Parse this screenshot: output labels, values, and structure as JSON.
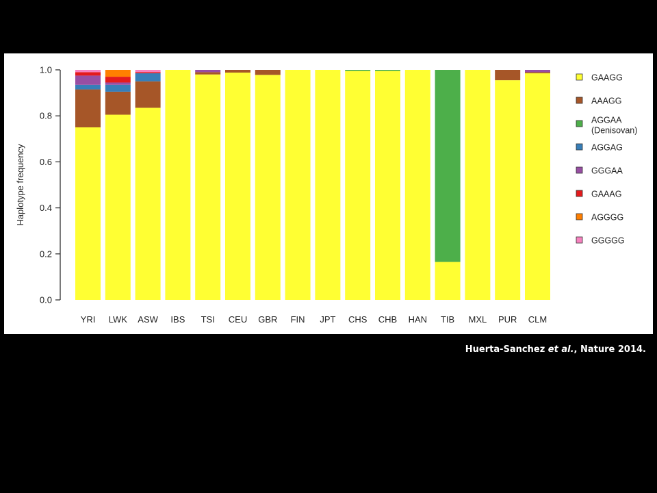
{
  "chart_data": {
    "type": "bar",
    "stacked": true,
    "ylabel": "Haplotype frequency",
    "xlabel": "",
    "ylim": [
      0,
      1
    ],
    "yticks": [
      "0.0",
      "0.2",
      "0.4",
      "0.6",
      "0.8",
      "1.0"
    ],
    "categories": [
      "YRI",
      "LWK",
      "ASW",
      "IBS",
      "TSI",
      "CEU",
      "GBR",
      "FIN",
      "JPT",
      "CHS",
      "CHB",
      "HAN",
      "TIB",
      "MXL",
      "PUR",
      "CLM"
    ],
    "legend_position": "right",
    "series": [
      {
        "name": "GAAGG",
        "color": "#ffff33",
        "values": [
          0.75,
          0.805,
          0.835,
          1.0,
          0.98,
          0.988,
          0.978,
          1.0,
          1.0,
          0.995,
          0.995,
          1.0,
          0.165,
          1.0,
          0.955,
          0.985
        ]
      },
      {
        "name": "AAAGG",
        "color": "#a65628",
        "values": [
          0.165,
          0.1,
          0.115,
          0.0,
          0.01,
          0.012,
          0.022,
          0.0,
          0.0,
          0.0,
          0.0,
          0.0,
          0.0,
          0.0,
          0.045,
          0.005
        ]
      },
      {
        "name": "AGGAA\n(Denisovan)",
        "color": "#4daf4a",
        "values": [
          0.0,
          0.0,
          0.0,
          0.0,
          0.0,
          0.0,
          0.0,
          0.0,
          0.0,
          0.005,
          0.005,
          0.0,
          0.835,
          0.0,
          0.0,
          0.0
        ]
      },
      {
        "name": "AGGAG",
        "color": "#377eb8",
        "values": [
          0.02,
          0.03,
          0.035,
          0.0,
          0.0,
          0.0,
          0.0,
          0.0,
          0.0,
          0.0,
          0.0,
          0.0,
          0.0,
          0.0,
          0.0,
          0.0
        ]
      },
      {
        "name": "GGGAA",
        "color": "#984ea3",
        "values": [
          0.04,
          0.01,
          0.0,
          0.0,
          0.01,
          0.0,
          0.0,
          0.0,
          0.0,
          0.0,
          0.0,
          0.0,
          0.0,
          0.0,
          0.0,
          0.01
        ]
      },
      {
        "name": "GAAAG",
        "color": "#e41a1c",
        "values": [
          0.015,
          0.025,
          0.005,
          0.0,
          0.0,
          0.0,
          0.0,
          0.0,
          0.0,
          0.0,
          0.0,
          0.0,
          0.0,
          0.0,
          0.0,
          0.0
        ]
      },
      {
        "name": "AGGGG",
        "color": "#ff7f00",
        "values": [
          0.0,
          0.03,
          0.0,
          0.0,
          0.0,
          0.0,
          0.0,
          0.0,
          0.0,
          0.0,
          0.0,
          0.0,
          0.0,
          0.0,
          0.0,
          0.0
        ]
      },
      {
        "name": "GGGGG",
        "color": "#f781bf",
        "values": [
          0.01,
          0.0,
          0.01,
          0.0,
          0.0,
          0.0,
          0.0,
          0.0,
          0.0,
          0.0,
          0.0,
          0.0,
          0.0,
          0.0,
          0.0,
          0.0
        ]
      }
    ]
  },
  "citation": {
    "prefix": "Huerta-Sanchez ",
    "italic": "et al.",
    "suffix": ", Nature 2014."
  }
}
